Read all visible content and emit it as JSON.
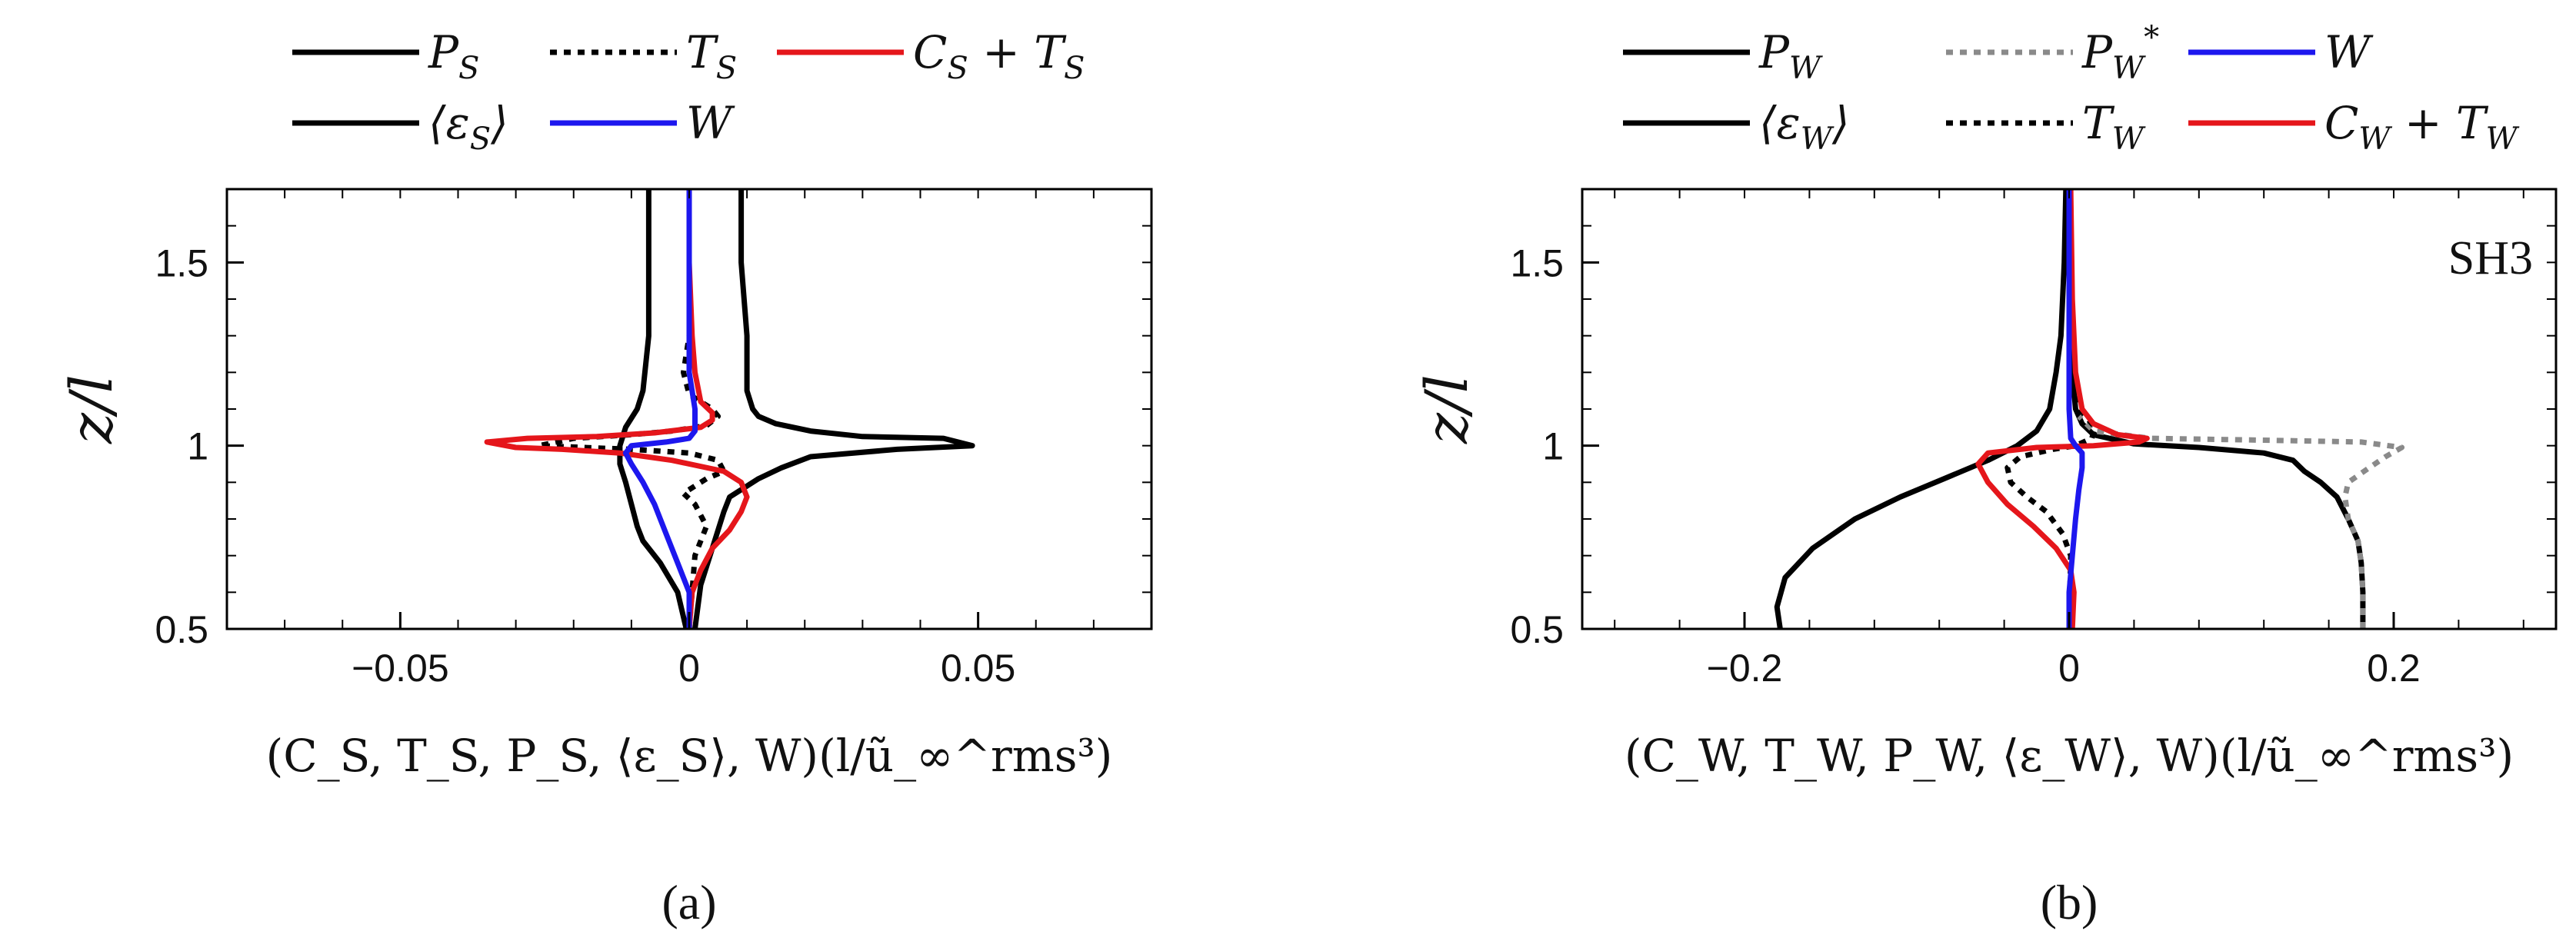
{
  "chart_data": [
    {
      "type": "line",
      "panel_label": "(a)",
      "xlabel": "(C_S, T_S, P_S, ⟨ε_S⟩, W)(l/ũ_∞^rms³)",
      "ylabel": "z/l",
      "xlim": [
        -0.08,
        0.08
      ],
      "ylim": [
        0.5,
        1.7
      ],
      "xticks": [
        "−0.05",
        "0",
        "0.05"
      ],
      "xtick_values": [
        -0.05,
        0,
        0.05
      ],
      "yticks": [
        "0.5",
        "1",
        "1.5"
      ],
      "ytick_values": [
        0.5,
        1,
        1.5
      ],
      "grid": false,
      "legend_placement": "above",
      "annotation": "",
      "series": [
        {
          "name": "P_S",
          "legend": [
            "P",
            "S",
            ""
          ],
          "color": "#000000",
          "dash": "solid",
          "points": [
            [
              0.001,
              0.5
            ],
            [
              0.002,
              0.62
            ],
            [
              0.004,
              0.72
            ],
            [
              0.006,
              0.82
            ],
            [
              0.007,
              0.86
            ],
            [
              0.009,
              0.88
            ],
            [
              0.012,
              0.91
            ],
            [
              0.016,
              0.94
            ],
            [
              0.021,
              0.97
            ],
            [
              0.036,
              0.99
            ],
            [
              0.049,
              1.0
            ],
            [
              0.044,
              1.02
            ],
            [
              0.03,
              1.025
            ],
            [
              0.021,
              1.04
            ],
            [
              0.015,
              1.06
            ],
            [
              0.012,
              1.08
            ],
            [
              0.011,
              1.1
            ],
            [
              0.01,
              1.15
            ],
            [
              0.01,
              1.3
            ],
            [
              0.009,
              1.5
            ],
            [
              0.009,
              1.6
            ],
            [
              0.009,
              1.7
            ]
          ]
        },
        {
          "name": "⟨ε_S⟩",
          "legend": [
            "⟨ε",
            "S",
            "⟩"
          ],
          "color": "#000000",
          "dash": "solid",
          "points": [
            [
              -0.0005,
              0.5
            ],
            [
              -0.002,
              0.6
            ],
            [
              -0.005,
              0.68
            ],
            [
              -0.008,
              0.74
            ],
            [
              -0.009,
              0.78
            ],
            [
              -0.01,
              0.84
            ],
            [
              -0.011,
              0.9
            ],
            [
              -0.012,
              0.95
            ],
            [
              -0.012,
              1.0
            ],
            [
              -0.011,
              1.05
            ],
            [
              -0.009,
              1.1
            ],
            [
              -0.008,
              1.15
            ],
            [
              -0.007,
              1.3
            ],
            [
              -0.007,
              1.5
            ],
            [
              -0.007,
              1.7
            ]
          ]
        },
        {
          "name": "T_S",
          "legend": [
            "T",
            "S",
            ""
          ],
          "color": "#000000",
          "dash": "dotted",
          "points": [
            [
              0.0,
              0.5
            ],
            [
              0.001,
              0.7
            ],
            [
              0.003,
              0.78
            ],
            [
              0.001,
              0.84
            ],
            [
              -0.001,
              0.87
            ],
            [
              0.003,
              0.91
            ],
            [
              0.006,
              0.93
            ],
            [
              0.005,
              0.96
            ],
            [
              0.0,
              0.98
            ],
            [
              -0.01,
              0.99
            ],
            [
              -0.026,
              1.0
            ],
            [
              -0.02,
              1.02
            ],
            [
              -0.01,
              1.03
            ],
            [
              -0.003,
              1.04
            ],
            [
              0.003,
              1.055
            ],
            [
              0.005,
              1.08
            ],
            [
              0.004,
              1.1
            ],
            [
              0.0,
              1.14
            ],
            [
              -0.001,
              1.2
            ],
            [
              0.0,
              1.3
            ],
            [
              0.0,
              1.5
            ],
            [
              0.0,
              1.7
            ]
          ]
        },
        {
          "name": "C_S + T_S",
          "legend": [
            "C",
            "S",
            " + T",
            "S",
            ""
          ],
          "color": "#e5161b",
          "dash": "solid",
          "points": [
            [
              0.0,
              0.5
            ],
            [
              0.0005,
              0.6
            ],
            [
              0.002,
              0.66
            ],
            [
              0.004,
              0.72
            ],
            [
              0.007,
              0.77
            ],
            [
              0.009,
              0.82
            ],
            [
              0.01,
              0.86
            ],
            [
              0.009,
              0.9
            ],
            [
              0.006,
              0.93
            ],
            [
              -0.003,
              0.96
            ],
            [
              -0.012,
              0.98
            ],
            [
              -0.022,
              0.99
            ],
            [
              -0.03,
              0.995
            ],
            [
              -0.035,
              1.01
            ],
            [
              -0.028,
              1.02
            ],
            [
              -0.016,
              1.025
            ],
            [
              -0.006,
              1.035
            ],
            [
              0.002,
              1.05
            ],
            [
              0.004,
              1.07
            ],
            [
              0.004,
              1.09
            ],
            [
              0.002,
              1.12
            ],
            [
              0.001,
              1.2
            ],
            [
              0.0005,
              1.3
            ],
            [
              0.0,
              1.5
            ],
            [
              0.0,
              1.7
            ]
          ]
        },
        {
          "name": "W",
          "legend": [
            "W",
            "",
            ""
          ],
          "color": "#1d17ee",
          "dash": "solid",
          "points": [
            [
              0.0,
              0.5
            ],
            [
              0.0,
              0.6
            ],
            [
              -0.002,
              0.68
            ],
            [
              -0.004,
              0.76
            ],
            [
              -0.006,
              0.84
            ],
            [
              -0.008,
              0.9
            ],
            [
              -0.01,
              0.95
            ],
            [
              -0.011,
              0.98
            ],
            [
              -0.01,
              1.0
            ],
            [
              -0.004,
              1.01
            ],
            [
              0.0,
              1.02
            ],
            [
              0.001,
              1.04
            ],
            [
              0.001,
              1.1
            ],
            [
              0.0,
              1.2
            ],
            [
              0.0,
              1.5
            ],
            [
              0.0,
              1.7
            ]
          ]
        }
      ]
    },
    {
      "type": "line",
      "panel_label": "(b)",
      "xlabel": "(C_W, T_W, P_W, ⟨ε_W⟩, W)(l/ũ_∞^rms³)",
      "ylabel": "z/l",
      "xlim": [
        -0.3,
        0.3
      ],
      "ylim": [
        0.5,
        1.7
      ],
      "xticks": [
        "−0.2",
        "0",
        "0.2"
      ],
      "xtick_values": [
        -0.2,
        0,
        0.2
      ],
      "yticks": [
        "0.5",
        "1",
        "1.5"
      ],
      "ytick_values": [
        0.5,
        1,
        1.5
      ],
      "grid": false,
      "legend_placement": "above",
      "annotation": "SH3",
      "series": [
        {
          "name": "P_W",
          "legend": [
            "P",
            "W",
            ""
          ],
          "color": "#000000",
          "dash": "solid",
          "points": [
            [
              0.181,
              0.5
            ],
            [
              0.181,
              0.6
            ],
            [
              0.18,
              0.68
            ],
            [
              0.178,
              0.74
            ],
            [
              0.172,
              0.8
            ],
            [
              0.165,
              0.86
            ],
            [
              0.155,
              0.9
            ],
            [
              0.145,
              0.93
            ],
            [
              0.138,
              0.96
            ],
            [
              0.12,
              0.98
            ],
            [
              0.08,
              0.995
            ],
            [
              0.04,
              1.005
            ],
            [
              0.015,
              1.03
            ],
            [
              0.008,
              1.06
            ],
            [
              0.004,
              1.1
            ],
            [
              0.002,
              1.2
            ],
            [
              0.001,
              1.4
            ],
            [
              0.0,
              1.7
            ]
          ]
        },
        {
          "name": "P*_W",
          "legend": [
            "P",
            "W",
            "*"
          ],
          "color": "#8a8a8a",
          "dash": "dotted",
          "points": [
            [
              0.181,
              0.5
            ],
            [
              0.181,
              0.6
            ],
            [
              0.18,
              0.68
            ],
            [
              0.178,
              0.74
            ],
            [
              0.172,
              0.8
            ],
            [
              0.17,
              0.86
            ],
            [
              0.172,
              0.9
            ],
            [
              0.185,
              0.94
            ],
            [
              0.195,
              0.97
            ],
            [
              0.205,
              0.995
            ],
            [
              0.18,
              1.01
            ],
            [
              0.12,
              1.015
            ],
            [
              0.05,
              1.02
            ],
            [
              0.015,
              1.04
            ],
            [
              0.006,
              1.08
            ]
          ]
        },
        {
          "name": "⟨ε_W⟩",
          "legend": [
            "⟨ε",
            "W",
            "⟩"
          ],
          "color": "#000000",
          "dash": "solid",
          "points": [
            [
              -0.178,
              0.5
            ],
            [
              -0.18,
              0.56
            ],
            [
              -0.175,
              0.64
            ],
            [
              -0.158,
              0.72
            ],
            [
              -0.132,
              0.8
            ],
            [
              -0.104,
              0.86
            ],
            [
              -0.077,
              0.91
            ],
            [
              -0.05,
              0.96
            ],
            [
              -0.032,
              1.0
            ],
            [
              -0.02,
              1.04
            ],
            [
              -0.012,
              1.1
            ],
            [
              -0.008,
              1.2
            ],
            [
              -0.005,
              1.3
            ],
            [
              -0.003,
              1.5
            ],
            [
              -0.002,
              1.7
            ]
          ]
        },
        {
          "name": "T_W",
          "legend": [
            "T",
            "W",
            ""
          ],
          "color": "#000000",
          "dash": "dotted",
          "points": [
            [
              0.0,
              0.5
            ],
            [
              0.001,
              0.7
            ],
            [
              -0.004,
              0.76
            ],
            [
              -0.014,
              0.82
            ],
            [
              -0.026,
              0.86
            ],
            [
              -0.036,
              0.9
            ],
            [
              -0.038,
              0.94
            ],
            [
              -0.03,
              0.97
            ],
            [
              -0.01,
              0.99
            ],
            [
              0.004,
              1.0
            ],
            [
              0.014,
              1.02
            ],
            [
              0.016,
              1.05
            ],
            [
              0.01,
              1.08
            ],
            [
              0.004,
              1.12
            ],
            [
              0.001,
              1.2
            ],
            [
              0.0,
              1.4
            ],
            [
              0.0,
              1.7
            ]
          ]
        },
        {
          "name": "C_W + T_W",
          "legend": [
            "C",
            "W",
            " + T",
            "W",
            ""
          ],
          "color": "#e5161b",
          "dash": "solid",
          "points": [
            [
              0.002,
              0.5
            ],
            [
              0.003,
              0.6
            ],
            [
              0.001,
              0.66
            ],
            [
              -0.008,
              0.72
            ],
            [
              -0.022,
              0.78
            ],
            [
              -0.038,
              0.84
            ],
            [
              -0.05,
              0.9
            ],
            [
              -0.056,
              0.95
            ],
            [
              -0.05,
              0.98
            ],
            [
              -0.02,
              0.995
            ],
            [
              0.015,
              1.0
            ],
            [
              0.043,
              1.01
            ],
            [
              0.048,
              1.02
            ],
            [
              0.03,
              1.03
            ],
            [
              0.015,
              1.06
            ],
            [
              0.008,
              1.1
            ],
            [
              0.004,
              1.2
            ],
            [
              0.002,
              1.4
            ],
            [
              0.001,
              1.7
            ]
          ]
        },
        {
          "name": "W",
          "legend": [
            "W",
            "",
            ""
          ],
          "color": "#1d17ee",
          "dash": "solid",
          "points": [
            [
              0.0,
              0.5
            ],
            [
              0.0,
              0.6
            ],
            [
              0.002,
              0.7
            ],
            [
              0.004,
              0.8
            ],
            [
              0.006,
              0.88
            ],
            [
              0.008,
              0.94
            ],
            [
              0.008,
              0.98
            ],
            [
              0.004,
              1.0
            ],
            [
              0.001,
              1.02
            ],
            [
              0.0,
              1.1
            ],
            [
              0.0,
              1.3
            ],
            [
              0.0,
              1.7
            ]
          ]
        }
      ]
    }
  ]
}
